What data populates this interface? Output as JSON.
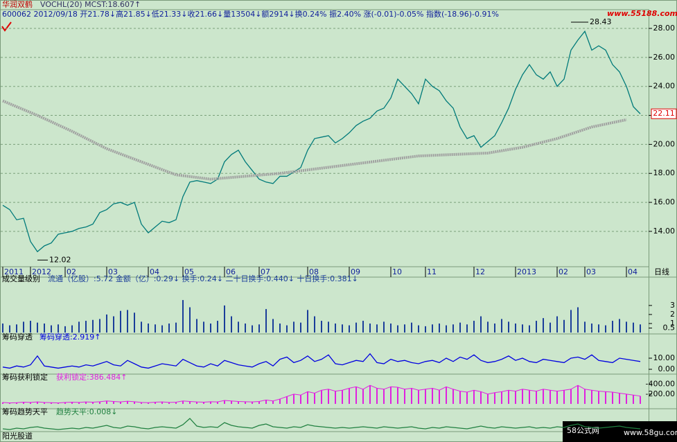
{
  "header": {
    "name": "华润双鹤",
    "indicator": "VOCHL(20) MCST:18.607↑",
    "quote": "600062 2012/09/18 开21.78↓高21.85↓低21.33↓收21.66↓量13504↓额2914↓换0.24% 振2.40% 涨(-0.01)-0.05% 指数(-18.96)-0.91%",
    "watermark": "www.55188.com"
  },
  "footer": {
    "left": "阳光股道",
    "brand": "58公式网",
    "site": "www.58gu.com"
  },
  "chart_data": [
    {
      "type": "line",
      "panel": "price",
      "color": "#007a7a",
      "values": [
        15.8,
        15.5,
        14.8,
        14.9,
        13.3,
        12.6,
        13.0,
        13.2,
        13.8,
        13.9,
        14.0,
        14.2,
        14.3,
        14.5,
        15.3,
        15.5,
        15.9,
        16.0,
        15.8,
        16.0,
        14.5,
        13.9,
        14.3,
        14.7,
        14.6,
        14.8,
        16.4,
        17.4,
        17.5,
        17.4,
        17.3,
        17.6,
        18.8,
        19.3,
        19.6,
        18.8,
        18.2,
        17.6,
        17.4,
        17.3,
        17.8,
        17.8,
        18.1,
        18.4,
        19.6,
        20.4,
        20.5,
        20.6,
        20.1,
        20.4,
        20.8,
        21.3,
        21.6,
        21.8,
        22.3,
        22.5,
        23.2,
        24.5,
        24.0,
        23.5,
        22.8,
        24.5,
        24.0,
        23.7,
        23.0,
        22.5,
        21.2,
        20.4,
        20.6,
        19.8,
        20.2,
        20.6,
        21.5,
        22.5,
        23.8,
        24.8,
        25.5,
        24.8,
        24.5,
        25.0,
        24.0,
        24.5,
        26.5,
        27.2,
        27.8,
        26.5,
        26.8,
        26.5,
        25.5,
        25.0,
        24.0,
        22.6,
        22.11
      ],
      "ma": {
        "color": "#a0a0a0",
        "x": [
          0,
          5,
          10,
          15,
          20,
          25,
          30,
          35,
          40,
          45,
          50,
          55,
          60,
          65,
          70,
          75,
          80,
          85,
          90
        ],
        "values": [
          23.0,
          22.0,
          20.9,
          19.7,
          18.8,
          17.9,
          17.6,
          17.8,
          18.0,
          18.3,
          18.6,
          18.9,
          19.2,
          19.3,
          19.4,
          19.8,
          20.4,
          21.2,
          21.7
        ]
      },
      "high": {
        "x": 82,
        "value": 28.43
      },
      "low": {
        "x": 5,
        "value": 12.02
      },
      "last_label": "22.11",
      "ylim": [
        11.56,
        29.29
      ],
      "yticks": [
        {
          "value": 28,
          "label": "28.00"
        },
        {
          "value": 26,
          "label": "26.00"
        },
        {
          "value": 24,
          "label": "24.00"
        },
        {
          "value": 22,
          "label": "22.00"
        },
        {
          "value": 20,
          "label": "20.00"
        },
        {
          "value": 18,
          "label": "18.00"
        },
        {
          "value": 16,
          "label": "16.00"
        },
        {
          "value": 14,
          "label": "14.00"
        }
      ],
      "xticks": [
        {
          "value": 0,
          "label": "2011"
        },
        {
          "value": 4,
          "label": "2012"
        },
        {
          "value": 9,
          "label": "02"
        },
        {
          "value": 15,
          "label": "03"
        },
        {
          "value": 21,
          "label": "04"
        },
        {
          "value": 26,
          "label": "05"
        },
        {
          "value": 32,
          "label": "06"
        },
        {
          "value": 37,
          "label": "07"
        },
        {
          "value": 44,
          "label": "08"
        },
        {
          "value": 50,
          "label": "09"
        },
        {
          "value": 56,
          "label": "10"
        },
        {
          "value": 61,
          "label": "11"
        },
        {
          "value": 68,
          "label": "12"
        },
        {
          "value": 74,
          "label": "2013"
        },
        {
          "value": 80,
          "label": "02"
        },
        {
          "value": 84,
          "label": "03"
        },
        {
          "value": 90,
          "label": "04"
        }
      ],
      "period": "日线",
      "grid": true
    },
    {
      "type": "bar",
      "panel": "volume",
      "title": "成交量级别",
      "info": "流通（亿股）:5.72 金额（亿）:0.29↓ 换手:0.24↓ 二十日换手:0.440↓ 十日换手:0.381↓",
      "color": "#1a3d9a",
      "values": [
        1.0,
        0.8,
        0.9,
        1.2,
        1.3,
        1.1,
        1.0,
        0.8,
        0.9,
        0.7,
        0.8,
        1.2,
        1.3,
        1.4,
        1.5,
        2.0,
        1.8,
        2.4,
        2.5,
        2.2,
        1.2,
        1.0,
        0.9,
        0.8,
        1.0,
        1.1,
        3.6,
        2.8,
        1.5,
        1.2,
        1.0,
        1.3,
        3.0,
        1.8,
        1.2,
        1.0,
        0.8,
        0.9,
        2.6,
        1.5,
        1.0,
        0.8,
        1.2,
        1.1,
        2.5,
        1.8,
        1.3,
        1.2,
        1.0,
        0.9,
        0.8,
        1.1,
        1.3,
        1.0,
        0.9,
        1.2,
        1.0,
        0.8,
        0.9,
        1.1,
        0.8,
        0.7,
        0.9,
        1.0,
        0.8,
        0.9,
        1.1,
        0.9,
        1.3,
        1.8,
        1.2,
        1.0,
        1.5,
        1.2,
        1.0,
        0.9,
        0.8,
        1.3,
        1.6,
        1.1,
        1.8,
        1.4,
        2.5,
        2.8,
        1.2,
        1.0,
        0.9,
        0.8,
        1.3,
        1.5,
        1.2,
        1.1,
        0.9
      ],
      "ylim": [
        0,
        6.14
      ],
      "yticks": [
        3,
        2,
        1,
        0.5
      ]
    },
    {
      "type": "line",
      "panel": "p3",
      "title": "筹码穿透",
      "info": "筹码穿透:2.919↑",
      "color": "#0000e0",
      "values": [
        2,
        1,
        3,
        2,
        4,
        12,
        3,
        2,
        1,
        2,
        3,
        2,
        4,
        3,
        5,
        7,
        4,
        3,
        8,
        5,
        2,
        1,
        3,
        5,
        4,
        3,
        9,
        6,
        3,
        2,
        5,
        3,
        8,
        6,
        4,
        3,
        2,
        5,
        7,
        3,
        9,
        11,
        6,
        8,
        12,
        7,
        9,
        13,
        5,
        4,
        6,
        8,
        7,
        14,
        6,
        5,
        9,
        7,
        8,
        6,
        5,
        7,
        8,
        6,
        10,
        7,
        11,
        9,
        13,
        8,
        6,
        7,
        9,
        12,
        8,
        10,
        7,
        6,
        9,
        8,
        7,
        6,
        10,
        11,
        9,
        13,
        8,
        7,
        6,
        10,
        9,
        8,
        7
      ],
      "ylim": [
        -3.1,
        30.6
      ],
      "yticks": [
        {
          "value": 10,
          "label": "10.00"
        },
        {
          "value": 0,
          "label": "0.00"
        }
      ]
    },
    {
      "type": "area",
      "panel": "p4",
      "title": "筹码获利锁定",
      "info": "获利锁定:386.484↑",
      "color": "#e020e0",
      "values": [
        -30,
        -20,
        -25,
        -35,
        -30,
        -40,
        -30,
        -25,
        -20,
        -30,
        -35,
        -30,
        -40,
        -35,
        -45,
        -60,
        -50,
        -40,
        -55,
        -45,
        -30,
        -25,
        -35,
        -40,
        -30,
        -35,
        -60,
        -50,
        -40,
        -35,
        -45,
        -40,
        -70,
        -60,
        -50,
        -45,
        -40,
        -50,
        -80,
        -60,
        -100,
        -150,
        -200,
        -180,
        -250,
        -220,
        -280,
        -300,
        -260,
        -280,
        -320,
        -350,
        -300,
        -380,
        -320,
        -300,
        -350,
        -340,
        -300,
        -320,
        -280,
        -300,
        -320,
        -280,
        -350,
        -300,
        -260,
        -240,
        -280,
        -250,
        -200,
        -230,
        -250,
        -280,
        -260,
        -300,
        -280,
        -260,
        -300,
        -280,
        -260,
        -280,
        -300,
        -380,
        -300,
        -280,
        -260,
        -250,
        -240,
        -220,
        -200,
        -180,
        -160
      ],
      "ylim": [
        0,
        -580
      ],
      "yticks": [
        {
          "value": -400,
          "label": "-400.00"
        },
        {
          "value": -200,
          "label": "-200.00"
        }
      ]
    },
    {
      "type": "line",
      "panel": "p5",
      "title": "筹码趋势天平",
      "info": "趋势天平:0.008↓",
      "color": "#208040",
      "values": [
        3,
        2,
        4,
        3,
        5,
        6,
        4,
        3,
        2,
        3,
        4,
        3,
        5,
        4,
        6,
        8,
        5,
        4,
        7,
        6,
        4,
        3,
        5,
        6,
        5,
        4,
        9,
        18,
        7,
        5,
        6,
        5,
        12,
        8,
        6,
        5,
        4,
        8,
        10,
        6,
        5,
        4,
        6,
        5,
        9,
        7,
        6,
        5,
        4,
        5,
        4,
        5,
        6,
        5,
        4,
        6,
        5,
        4,
        5,
        6,
        4,
        3,
        5,
        4,
        6,
        5,
        4,
        3,
        5,
        7,
        5,
        4,
        6,
        5,
        4,
        5,
        6,
        4,
        5,
        4,
        6,
        5,
        8,
        10,
        6,
        5,
        4,
        5,
        6,
        7,
        5,
        4,
        3
      ],
      "ylim": [
        0,
        30
      ]
    }
  ]
}
